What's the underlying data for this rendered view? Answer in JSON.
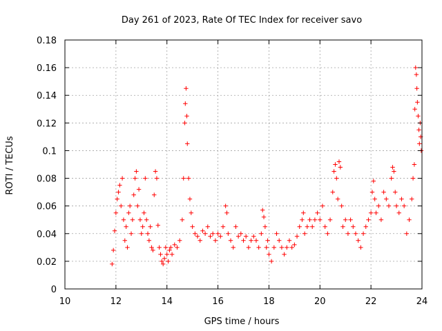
{
  "chart_data": {
    "type": "scatter",
    "title": "Day 261 of 2023, Rate Of TEC Index for receiver savo",
    "xlabel": "GPS time / hours",
    "ylabel": "ROTI / TECUs",
    "xlim": [
      10,
      24
    ],
    "ylim": [
      0,
      0.18
    ],
    "xticks": [
      10,
      12,
      14,
      16,
      18,
      20,
      22,
      24
    ],
    "xtick_labels": [
      "10",
      "12",
      "14",
      "16",
      "18",
      "20",
      "22",
      "24"
    ],
    "yticks": [
      0,
      0.02,
      0.04,
      0.06,
      0.08,
      0.1,
      0.12,
      0.14,
      0.16,
      0.18
    ],
    "ytick_labels": [
      "0",
      "0.02",
      "0.04",
      "0.06",
      "0.08",
      "0.1",
      "0.12",
      "0.14",
      "0.16",
      "0.18"
    ],
    "grid": true,
    "marker": "+",
    "color": "#ff0000",
    "series": [
      {
        "name": "",
        "points": [
          [
            11.85,
            0.018
          ],
          [
            11.9,
            0.028
          ],
          [
            11.95,
            0.042
          ],
          [
            12.0,
            0.055
          ],
          [
            12.05,
            0.065
          ],
          [
            12.1,
            0.07
          ],
          [
            12.15,
            0.075
          ],
          [
            12.2,
            0.06
          ],
          [
            12.25,
            0.08
          ],
          [
            12.3,
            0.05
          ],
          [
            12.35,
            0.035
          ],
          [
            12.4,
            0.045
          ],
          [
            12.45,
            0.03
          ],
          [
            12.5,
            0.055
          ],
          [
            12.55,
            0.06
          ],
          [
            12.6,
            0.04
          ],
          [
            12.65,
            0.05
          ],
          [
            12.7,
            0.068
          ],
          [
            12.75,
            0.08
          ],
          [
            12.8,
            0.085
          ],
          [
            12.85,
            0.06
          ],
          [
            12.9,
            0.072
          ],
          [
            12.95,
            0.05
          ],
          [
            13.0,
            0.04
          ],
          [
            13.05,
            0.045
          ],
          [
            13.1,
            0.055
          ],
          [
            13.15,
            0.08
          ],
          [
            13.2,
            0.05
          ],
          [
            13.25,
            0.04
          ],
          [
            13.3,
            0.035
          ],
          [
            13.35,
            0.045
          ],
          [
            13.4,
            0.03
          ],
          [
            13.45,
            0.028
          ],
          [
            13.5,
            0.068
          ],
          [
            13.55,
            0.085
          ],
          [
            13.6,
            0.08
          ],
          [
            13.65,
            0.046
          ],
          [
            13.7,
            0.03
          ],
          [
            13.75,
            0.025
          ],
          [
            13.8,
            0.02
          ],
          [
            13.85,
            0.018
          ],
          [
            13.9,
            0.022
          ],
          [
            13.95,
            0.03
          ],
          [
            14.0,
            0.025
          ],
          [
            14.05,
            0.02
          ],
          [
            14.1,
            0.028
          ],
          [
            14.15,
            0.03
          ],
          [
            14.2,
            0.025
          ],
          [
            14.3,
            0.032
          ],
          [
            14.4,
            0.03
          ],
          [
            14.5,
            0.035
          ],
          [
            14.6,
            0.05
          ],
          [
            14.65,
            0.08
          ],
          [
            14.7,
            0.12
          ],
          [
            14.72,
            0.134
          ],
          [
            14.75,
            0.145
          ],
          [
            14.78,
            0.125
          ],
          [
            14.8,
            0.105
          ],
          [
            14.85,
            0.08
          ],
          [
            14.9,
            0.065
          ],
          [
            14.95,
            0.055
          ],
          [
            15.0,
            0.045
          ],
          [
            15.1,
            0.04
          ],
          [
            15.2,
            0.038
          ],
          [
            15.3,
            0.035
          ],
          [
            15.4,
            0.042
          ],
          [
            15.5,
            0.04
          ],
          [
            15.6,
            0.045
          ],
          [
            15.7,
            0.038
          ],
          [
            15.8,
            0.04
          ],
          [
            15.9,
            0.035
          ],
          [
            16.0,
            0.04
          ],
          [
            16.1,
            0.038
          ],
          [
            16.2,
            0.045
          ],
          [
            16.3,
            0.06
          ],
          [
            16.35,
            0.055
          ],
          [
            16.4,
            0.04
          ],
          [
            16.5,
            0.035
          ],
          [
            16.6,
            0.03
          ],
          [
            16.7,
            0.045
          ],
          [
            16.8,
            0.038
          ],
          [
            16.9,
            0.04
          ],
          [
            17.0,
            0.035
          ],
          [
            17.1,
            0.038
          ],
          [
            17.2,
            0.03
          ],
          [
            17.3,
            0.035
          ],
          [
            17.4,
            0.038
          ],
          [
            17.5,
            0.035
          ],
          [
            17.6,
            0.03
          ],
          [
            17.7,
            0.04
          ],
          [
            17.75,
            0.057
          ],
          [
            17.8,
            0.052
          ],
          [
            17.85,
            0.045
          ],
          [
            17.9,
            0.03
          ],
          [
            17.95,
            0.035
          ],
          [
            18.0,
            0.025
          ],
          [
            18.1,
            0.02
          ],
          [
            18.2,
            0.03
          ],
          [
            18.3,
            0.04
          ],
          [
            18.4,
            0.035
          ],
          [
            18.5,
            0.03
          ],
          [
            18.6,
            0.025
          ],
          [
            18.7,
            0.03
          ],
          [
            18.8,
            0.035
          ],
          [
            18.9,
            0.03
          ],
          [
            19.0,
            0.032
          ],
          [
            19.1,
            0.038
          ],
          [
            19.2,
            0.045
          ],
          [
            19.3,
            0.05
          ],
          [
            19.35,
            0.055
          ],
          [
            19.4,
            0.04
          ],
          [
            19.5,
            0.045
          ],
          [
            19.6,
            0.05
          ],
          [
            19.7,
            0.045
          ],
          [
            19.8,
            0.05
          ],
          [
            19.9,
            0.055
          ],
          [
            20.0,
            0.05
          ],
          [
            20.1,
            0.06
          ],
          [
            20.2,
            0.045
          ],
          [
            20.3,
            0.04
          ],
          [
            20.4,
            0.05
          ],
          [
            20.5,
            0.07
          ],
          [
            20.55,
            0.085
          ],
          [
            20.6,
            0.09
          ],
          [
            20.65,
            0.08
          ],
          [
            20.7,
            0.065
          ],
          [
            20.75,
            0.092
          ],
          [
            20.8,
            0.088
          ],
          [
            20.85,
            0.06
          ],
          [
            20.9,
            0.045
          ],
          [
            21.0,
            0.05
          ],
          [
            21.1,
            0.04
          ],
          [
            21.2,
            0.05
          ],
          [
            21.3,
            0.045
          ],
          [
            21.4,
            0.04
          ],
          [
            21.5,
            0.035
          ],
          [
            21.6,
            0.03
          ],
          [
            21.7,
            0.04
          ],
          [
            21.8,
            0.045
          ],
          [
            21.9,
            0.05
          ],
          [
            22.0,
            0.055
          ],
          [
            22.05,
            0.07
          ],
          [
            22.1,
            0.078
          ],
          [
            22.15,
            0.065
          ],
          [
            22.2,
            0.055
          ],
          [
            22.3,
            0.06
          ],
          [
            22.4,
            0.05
          ],
          [
            22.5,
            0.07
          ],
          [
            22.6,
            0.065
          ],
          [
            22.7,
            0.06
          ],
          [
            22.8,
            0.08
          ],
          [
            22.85,
            0.088
          ],
          [
            22.9,
            0.085
          ],
          [
            22.95,
            0.07
          ],
          [
            23.0,
            0.06
          ],
          [
            23.1,
            0.055
          ],
          [
            23.2,
            0.065
          ],
          [
            23.3,
            0.06
          ],
          [
            23.4,
            0.04
          ],
          [
            23.5,
            0.05
          ],
          [
            23.6,
            0.065
          ],
          [
            23.65,
            0.08
          ],
          [
            23.7,
            0.09
          ],
          [
            23.72,
            0.13
          ],
          [
            23.75,
            0.16
          ],
          [
            23.78,
            0.155
          ],
          [
            23.8,
            0.145
          ],
          [
            23.82,
            0.135
          ],
          [
            23.85,
            0.125
          ],
          [
            23.88,
            0.115
          ],
          [
            23.9,
            0.105
          ],
          [
            23.93,
            0.12
          ],
          [
            23.95,
            0.11
          ],
          [
            23.97,
            0.1
          ]
        ]
      }
    ]
  }
}
